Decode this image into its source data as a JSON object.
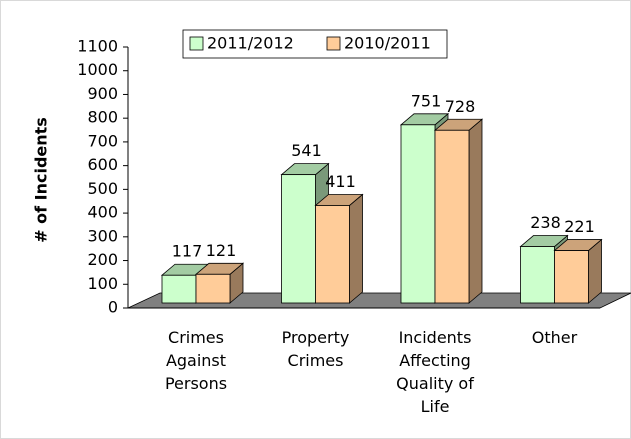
{
  "chart_data": {
    "type": "bar3d",
    "y_label": "# of Incidents",
    "categories": [
      "Crimes Against Persons",
      "Property Crimes",
      "Incidents Affecting Quality of Life",
      "Other"
    ],
    "series": [
      {
        "name": "2011/2012",
        "color": "#ccffcc",
        "values": [
          117,
          541,
          751,
          238
        ]
      },
      {
        "name": "2010/2011",
        "color": "#ffcc99",
        "values": [
          121,
          411,
          728,
          221
        ]
      }
    ],
    "ylim": [
      0,
      1100
    ],
    "yticks": [
      0,
      100,
      200,
      300,
      400,
      500,
      600,
      700,
      800,
      900,
      1000,
      1100
    ],
    "legend": "top"
  }
}
